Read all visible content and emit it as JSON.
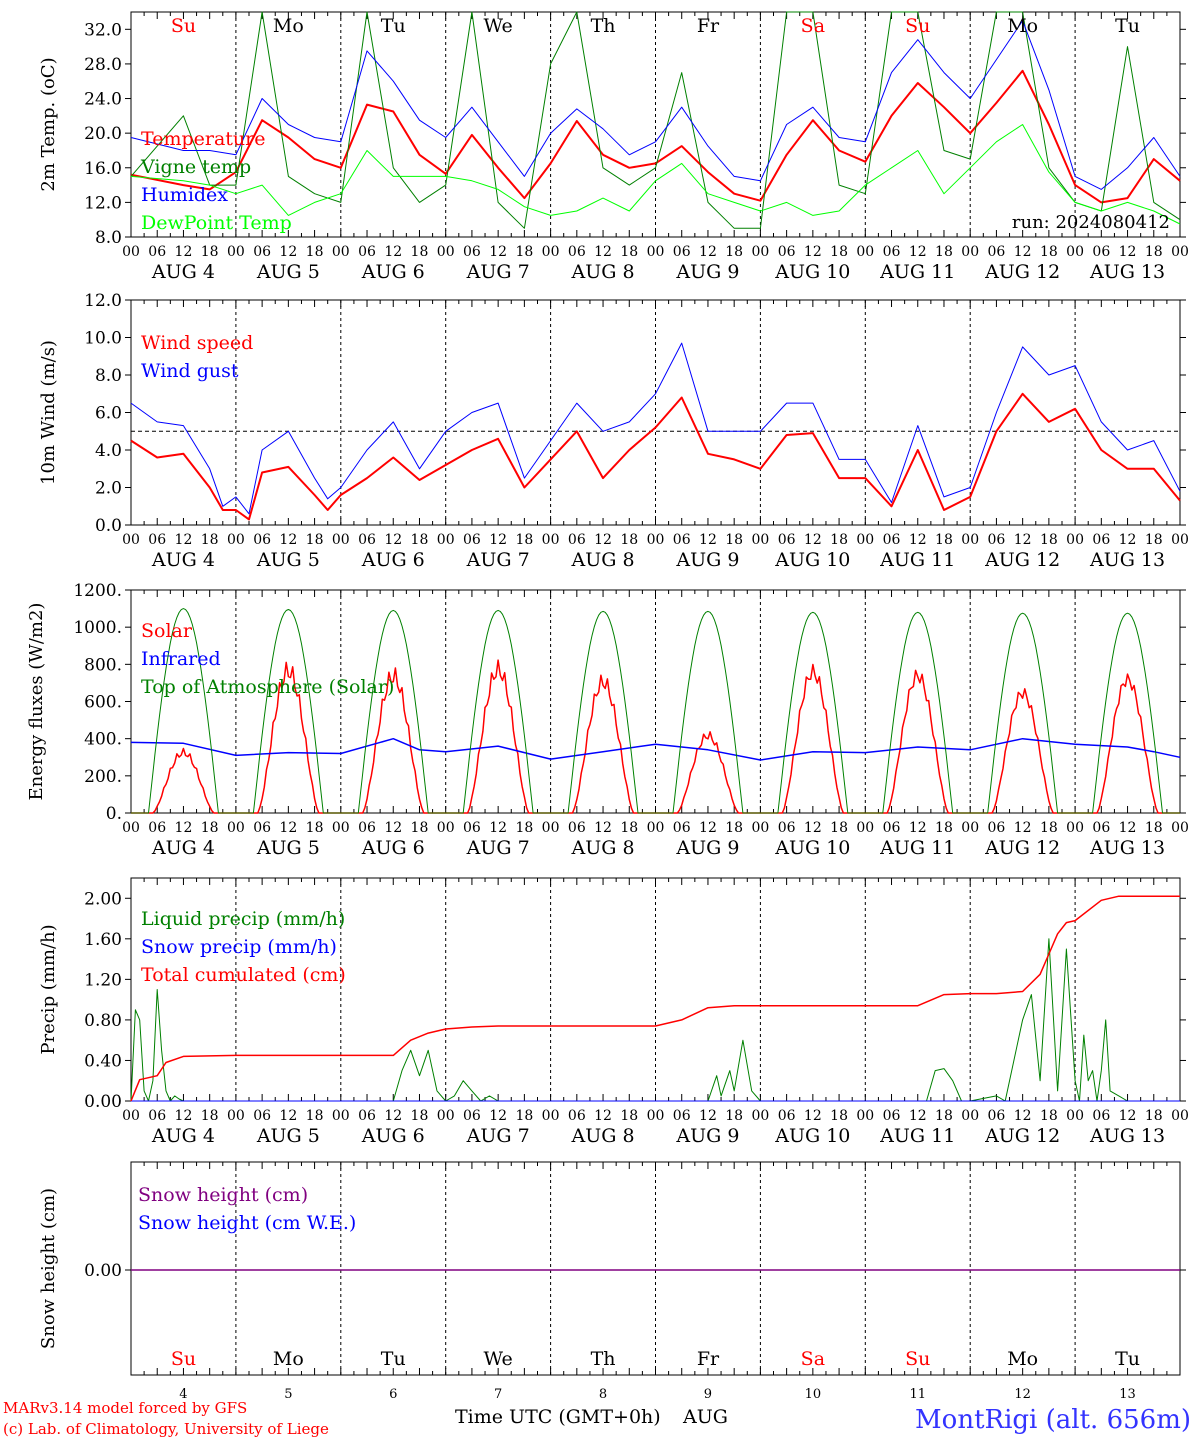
{
  "run_label": "run: 2024080412",
  "station_label": "MontRigi (alt. 656m)",
  "credits": [
    "MARv3.14 model forced by GFS",
    "(c) Lab. of Climatology, University of Liege"
  ],
  "time_axis_label": "Time UTC (GMT+0h)",
  "month_label": "AUG",
  "hour_ticks": [
    "00",
    "06",
    "12",
    "18"
  ],
  "day_numbers": [
    "4",
    "5",
    "6",
    "7",
    "8",
    "9",
    "10",
    "11",
    "12",
    "13"
  ],
  "weekdays": [
    {
      "label": "Su",
      "color": "#ff0000"
    },
    {
      "label": "Mo",
      "color": "#000000"
    },
    {
      "label": "Tu",
      "color": "#000000"
    },
    {
      "label": "We",
      "color": "#000000"
    },
    {
      "label": "Th",
      "color": "#000000"
    },
    {
      "label": "Fr",
      "color": "#000000"
    },
    {
      "label": "Sa",
      "color": "#ff0000"
    },
    {
      "label": "Su",
      "color": "#ff0000"
    },
    {
      "label": "Mo",
      "color": "#000000"
    },
    {
      "label": "Tu",
      "color": "#000000"
    }
  ],
  "colors": {
    "red": "#ff0000",
    "dark_green": "#008000",
    "blue": "#0000ff",
    "light_green": "#00ff00",
    "purple": "#800080",
    "station": "#3333ff"
  },
  "chart_data": [
    {
      "type": "line",
      "ylabel": "2m Temp. (oC)",
      "ylim": [
        8.0,
        34.0
      ],
      "yticks": [
        "8.0",
        "12.0",
        "16.0",
        "20.0",
        "24.0",
        "28.0",
        "32.0"
      ],
      "legend": [
        "Temperature",
        "Vigne temp",
        "Humidex",
        "DewPoint Temp"
      ],
      "x_unit": "hours since AUG 4 00 UTC",
      "series": [
        {
          "name": "Temperature",
          "color": "#ff0000",
          "width": 2,
          "x": [
            0,
            12,
            18,
            24,
            30,
            36,
            42,
            48,
            54,
            60,
            66,
            72,
            78,
            84,
            90,
            96,
            102,
            108,
            114,
            120,
            126,
            132,
            138,
            144,
            150,
            156,
            162,
            168,
            174,
            180,
            186,
            192,
            198,
            204,
            210,
            216,
            222,
            228,
            234,
            240
          ],
          "values": [
            15.2,
            14.0,
            13.5,
            15.5,
            21.5,
            19.5,
            17.0,
            16.0,
            23.3,
            22.5,
            17.5,
            15.3,
            19.8,
            16.0,
            12.5,
            16.5,
            21.4,
            17.5,
            16.0,
            16.5,
            18.5,
            15.5,
            13.0,
            12.2,
            17.5,
            21.5,
            18.0,
            16.7,
            22.0,
            25.8,
            23.0,
            20.0,
            23.5,
            27.2,
            21.0,
            14.0,
            12.0,
            12.5,
            17.0,
            14.5
          ]
        },
        {
          "name": "Vigne temp",
          "color": "#008000",
          "width": 1,
          "x": [
            0,
            12,
            18,
            24,
            30,
            36,
            42,
            48,
            54,
            60,
            66,
            72,
            78,
            84,
            90,
            96,
            102,
            108,
            114,
            120,
            126,
            132,
            138,
            144,
            150,
            156,
            162,
            168,
            174,
            180,
            186,
            192,
            198,
            204,
            210,
            216,
            222,
            228,
            234,
            240
          ],
          "values": [
            15.0,
            22.0,
            14.0,
            14.0,
            34.0,
            15.0,
            13.0,
            12.0,
            34.0,
            16.0,
            12.0,
            14.0,
            34.0,
            12.0,
            9.0,
            28.0,
            34.0,
            16.0,
            14.0,
            16.0,
            27.0,
            12.0,
            9.0,
            9.0,
            34.0,
            34.0,
            14.0,
            13.0,
            34.0,
            34.0,
            18.0,
            17.0,
            34.0,
            34.0,
            16.0,
            12.0,
            11.0,
            30.0,
            12.0,
            10.0
          ]
        },
        {
          "name": "Humidex",
          "color": "#0000ff",
          "width": 1,
          "x": [
            0,
            12,
            18,
            24,
            30,
            36,
            42,
            48,
            54,
            60,
            66,
            72,
            78,
            84,
            90,
            96,
            102,
            108,
            114,
            120,
            126,
            132,
            138,
            144,
            150,
            156,
            162,
            168,
            174,
            180,
            186,
            192,
            198,
            204,
            210,
            216,
            222,
            228,
            234,
            240
          ],
          "values": [
            19.5,
            18.0,
            18.0,
            17.5,
            24.0,
            21.0,
            19.5,
            19.0,
            29.5,
            26.0,
            21.5,
            19.5,
            23.0,
            19.0,
            15.0,
            20.0,
            22.8,
            20.5,
            17.5,
            19.0,
            23.0,
            18.5,
            15.0,
            14.5,
            21.0,
            23.0,
            19.5,
            19.0,
            27.0,
            30.8,
            27.0,
            24.0,
            28.5,
            33.0,
            25.0,
            15.0,
            13.5,
            16.0,
            19.5,
            15.0
          ]
        },
        {
          "name": "DewPoint Temp",
          "color": "#00ff00",
          "width": 1,
          "x": [
            0,
            12,
            18,
            24,
            30,
            36,
            42,
            48,
            54,
            60,
            66,
            72,
            78,
            84,
            90,
            96,
            102,
            108,
            114,
            120,
            126,
            132,
            138,
            144,
            150,
            156,
            162,
            168,
            174,
            180,
            186,
            192,
            198,
            204,
            210,
            216,
            222,
            228,
            234,
            240
          ],
          "values": [
            15.0,
            14.5,
            14.0,
            13.0,
            14.0,
            10.5,
            12.0,
            13.0,
            18.0,
            15.0,
            15.0,
            15.0,
            14.5,
            13.5,
            11.5,
            10.5,
            11.0,
            12.5,
            11.0,
            14.5,
            16.5,
            13.0,
            12.0,
            11.0,
            12.0,
            10.5,
            11.0,
            14.0,
            16.0,
            18.0,
            13.0,
            16.0,
            19.0,
            21.0,
            15.5,
            12.0,
            11.0,
            12.0,
            11.0,
            9.5
          ]
        }
      ]
    },
    {
      "type": "line",
      "ylabel": "10m Wind (m/s)",
      "ylim": [
        0.0,
        12.0
      ],
      "yticks": [
        "0.0",
        "2.0",
        "4.0",
        "6.0",
        "8.0",
        "10.0",
        "12.0"
      ],
      "reference_line": 5.0,
      "legend": [
        "Wind speed",
        "Wind gust"
      ],
      "series": [
        {
          "name": "Wind speed",
          "color": "#ff0000",
          "width": 2,
          "x": [
            0,
            6,
            12,
            18,
            21,
            24,
            27,
            30,
            36,
            42,
            45,
            48,
            54,
            60,
            66,
            72,
            78,
            84,
            90,
            96,
            102,
            108,
            114,
            120,
            126,
            132,
            138,
            144,
            150,
            156,
            162,
            168,
            174,
            180,
            186,
            192,
            198,
            204,
            210,
            216,
            222,
            228,
            234,
            240
          ],
          "values": [
            4.5,
            3.6,
            3.8,
            2.0,
            0.8,
            0.8,
            0.3,
            2.8,
            3.1,
            1.6,
            0.8,
            1.6,
            2.5,
            3.6,
            2.4,
            3.2,
            4.0,
            4.6,
            2.0,
            3.5,
            5.0,
            2.5,
            4.0,
            5.2,
            6.8,
            3.8,
            3.5,
            3.0,
            4.8,
            4.9,
            2.5,
            2.5,
            1.0,
            4.0,
            0.8,
            1.5,
            5.0,
            7.0,
            5.5,
            6.2,
            4.0,
            3.0,
            3.0,
            1.3
          ]
        },
        {
          "name": "Wind gust",
          "color": "#0000ff",
          "width": 1,
          "x": [
            0,
            6,
            12,
            18,
            21,
            24,
            27,
            30,
            36,
            42,
            45,
            48,
            54,
            60,
            66,
            72,
            78,
            84,
            90,
            96,
            102,
            108,
            114,
            120,
            126,
            132,
            138,
            144,
            150,
            156,
            162,
            168,
            174,
            180,
            186,
            192,
            198,
            204,
            210,
            216,
            222,
            228,
            234,
            240
          ],
          "values": [
            6.5,
            5.5,
            5.3,
            3.0,
            1.0,
            1.5,
            0.6,
            4.0,
            5.0,
            2.5,
            1.4,
            2.0,
            4.0,
            5.5,
            3.0,
            5.0,
            6.0,
            6.5,
            2.5,
            4.5,
            6.5,
            5.0,
            5.5,
            7.0,
            9.7,
            5.0,
            5.0,
            5.0,
            6.5,
            6.5,
            3.5,
            3.5,
            1.2,
            5.3,
            1.5,
            2.0,
            6.0,
            9.5,
            8.0,
            8.5,
            5.5,
            4.0,
            4.5,
            1.8
          ]
        }
      ]
    },
    {
      "type": "line",
      "ylabel": "Energy fluxes (W/m2)",
      "ylim": [
        0,
        1200
      ],
      "yticks": [
        "0.",
        "200.",
        "400.",
        "600.",
        "800.",
        "1000.",
        "1200."
      ],
      "legend": [
        "Solar",
        "Infrared",
        "Top of Atmosphere (Solar)"
      ],
      "toa_peaks": [
        1100,
        1095,
        1090,
        1090,
        1085,
        1085,
        1080,
        1080,
        1075,
        1075
      ],
      "solar_peaks": [
        350,
        820,
        790,
        830,
        760,
        450,
        820,
        800,
        700,
        780
      ],
      "series": [
        {
          "name": "Solar",
          "color": "#ff0000",
          "width": 1.5
        },
        {
          "name": "Infrared",
          "color": "#0000ff",
          "width": 1.5,
          "x": [
            0,
            12,
            24,
            36,
            48,
            60,
            66,
            72,
            84,
            96,
            108,
            120,
            132,
            144,
            156,
            168,
            180,
            192,
            204,
            216,
            228,
            234,
            240
          ],
          "values": [
            380,
            375,
            310,
            325,
            320,
            400,
            340,
            330,
            360,
            290,
            330,
            370,
            340,
            285,
            330,
            325,
            355,
            340,
            400,
            370,
            355,
            330,
            300
          ]
        },
        {
          "name": "Top of Atmosphere (Solar)",
          "color": "#008000",
          "width": 1
        }
      ]
    },
    {
      "type": "line",
      "ylabel": "Precip (mm/h)",
      "ylim": [
        0.0,
        2.2
      ],
      "yticks": [
        "0.00",
        "0.40",
        "0.80",
        "1.20",
        "1.60",
        "2.00"
      ],
      "legend": [
        "Liquid precip (mm/h)",
        "Snow precip (mm/h)",
        "Total cumulated (cm)"
      ],
      "series": [
        {
          "name": "Liquid precip (mm/h)",
          "color": "#008000",
          "width": 1,
          "x": [
            0,
            1,
            2,
            3,
            4,
            5,
            6,
            7,
            8,
            9,
            10,
            11,
            12,
            14,
            60,
            62,
            64,
            66,
            68,
            70,
            72,
            74,
            76,
            78,
            80,
            82,
            84,
            132,
            134,
            135,
            137,
            138,
            140,
            142,
            144,
            182,
            184,
            186,
            188,
            190,
            192,
            198,
            200,
            204,
            206,
            208,
            210,
            212,
            214,
            216,
            217,
            218,
            219,
            220,
            221,
            222,
            223,
            224,
            226,
            228,
            230
          ],
          "values": [
            0,
            0.9,
            0.8,
            0.1,
            0,
            0.2,
            1.1,
            0.5,
            0.1,
            0,
            0.05,
            0.02,
            0,
            0,
            0,
            0.3,
            0.5,
            0.25,
            0.5,
            0.1,
            0,
            0.05,
            0.2,
            0.1,
            0,
            0.05,
            0,
            0,
            0.25,
            0.05,
            0.3,
            0.1,
            0.6,
            0.1,
            0,
            0,
            0.3,
            0.32,
            0.2,
            0,
            0,
            0.05,
            0,
            0.8,
            1.05,
            0.2,
            1.6,
            0.1,
            1.5,
            0.2,
            0,
            0.65,
            0.2,
            0.3,
            0,
            0.3,
            0.8,
            0.1,
            0.05,
            0,
            0
          ]
        },
        {
          "name": "Snow precip (mm/h)",
          "color": "#0000ff",
          "width": 1,
          "x": [
            0,
            240
          ],
          "values": [
            0,
            0
          ]
        },
        {
          "name": "Total cumulated (cm)",
          "color": "#ff0000",
          "width": 1.5,
          "x": [
            0,
            2,
            6,
            8,
            12,
            24,
            48,
            60,
            64,
            68,
            72,
            78,
            84,
            120,
            126,
            132,
            138,
            144,
            180,
            186,
            192,
            198,
            204,
            208,
            210,
            212,
            214,
            216,
            222,
            226,
            240
          ],
          "values": [
            0.0,
            0.21,
            0.25,
            0.38,
            0.44,
            0.45,
            0.45,
            0.45,
            0.6,
            0.67,
            0.71,
            0.73,
            0.74,
            0.74,
            0.8,
            0.92,
            0.94,
            0.94,
            0.94,
            1.05,
            1.06,
            1.06,
            1.08,
            1.25,
            1.45,
            1.65,
            1.76,
            1.78,
            1.98,
            2.02,
            2.02
          ]
        }
      ]
    },
    {
      "type": "line",
      "ylabel": "Snow height (cm)",
      "ylim": [
        -1,
        1
      ],
      "yticks": [
        "0.00"
      ],
      "legend": [
        "Snow height (cm)",
        "Snow height (cm W.E.)"
      ],
      "series": [
        {
          "name": "Snow height (cm)",
          "color": "#800080",
          "width": 1.5,
          "x": [
            0,
            240
          ],
          "values": [
            0,
            0
          ]
        },
        {
          "name": "Snow height (cm W.E.)",
          "color": "#0000ff",
          "width": 0,
          "x": [
            0,
            240
          ],
          "values": [
            0,
            0
          ]
        }
      ]
    }
  ]
}
